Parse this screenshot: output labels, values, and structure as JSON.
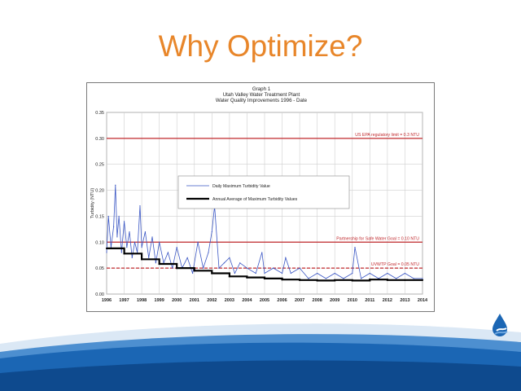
{
  "slide": {
    "title": "Why Optimize?"
  },
  "colors": {
    "title": "#e8862a",
    "limit_line": "#c0282c",
    "daily_series": "#3a56c4",
    "annual_series": "#000000",
    "swoosh": "#1b66b4"
  },
  "icons": {
    "logo": "water-drop-logo"
  },
  "chart_data": {
    "type": "line",
    "title_lines": [
      "Graph 1",
      "Utah Valley Water Treatment Plant",
      "Water Quality Improvements 1996 - Date"
    ],
    "xlabel": "",
    "ylabel": "Turbidity (NTU)",
    "xlim": [
      1996,
      2014
    ],
    "ylim": [
      0,
      0.35
    ],
    "x_ticks": [
      "1996",
      "1997",
      "1998",
      "1999",
      "2000",
      "2001",
      "2002",
      "2003",
      "2004",
      "2005",
      "2006",
      "2007",
      "2008",
      "2009",
      "2010",
      "2011",
      "2012",
      "2013",
      "2014"
    ],
    "y_ticks": [
      "0.00",
      "0.05",
      "0.10",
      "0.15",
      "0.20",
      "0.25",
      "0.30",
      "0.35"
    ],
    "grid": true,
    "legend_position": "upper-center",
    "reference_lines": [
      {
        "name": "US EPA regulatory limit = 0.3 NTU",
        "value": 0.3,
        "style": "solid"
      },
      {
        "name": "Partnership for Safe Water Goal = 0.10 NTU",
        "value": 0.1,
        "style": "solid"
      },
      {
        "name": "UVWTP Goal = 0.05 NTU",
        "value": 0.05,
        "style": "dashed"
      }
    ],
    "series": [
      {
        "name": "Daily Maximum Turbidity Value",
        "style": "thin",
        "x": [
          1996.0,
          1996.1,
          1996.25,
          1996.4,
          1996.5,
          1996.6,
          1996.7,
          1996.85,
          1997.0,
          1997.15,
          1997.3,
          1997.45,
          1997.6,
          1997.75,
          1997.9,
          1998.0,
          1998.2,
          1998.4,
          1998.6,
          1998.8,
          1999.0,
          1999.25,
          1999.5,
          1999.75,
          2000.0,
          2000.3,
          2000.6,
          2000.9,
          2001.2,
          2001.5,
          2001.8,
          2002.0,
          2002.15,
          2002.4,
          2002.7,
          2003.0,
          2003.3,
          2003.6,
          2004.0,
          2004.5,
          2004.85,
          2005.0,
          2005.5,
          2006.0,
          2006.2,
          2006.5,
          2007.0,
          2007.5,
          2008.0,
          2008.5,
          2009.0,
          2009.5,
          2010.0,
          2010.15,
          2010.5,
          2011.0,
          2011.5,
          2012.0,
          2012.5,
          2013.0,
          2013.5,
          2014.0
        ],
        "y": [
          0.08,
          0.15,
          0.09,
          0.13,
          0.21,
          0.11,
          0.15,
          0.08,
          0.14,
          0.09,
          0.12,
          0.07,
          0.1,
          0.08,
          0.17,
          0.09,
          0.12,
          0.07,
          0.11,
          0.06,
          0.1,
          0.06,
          0.08,
          0.05,
          0.09,
          0.05,
          0.07,
          0.04,
          0.1,
          0.05,
          0.08,
          0.12,
          0.17,
          0.05,
          0.06,
          0.07,
          0.04,
          0.06,
          0.05,
          0.04,
          0.08,
          0.04,
          0.05,
          0.04,
          0.07,
          0.04,
          0.05,
          0.03,
          0.04,
          0.03,
          0.04,
          0.03,
          0.04,
          0.09,
          0.03,
          0.04,
          0.03,
          0.04,
          0.03,
          0.04,
          0.03,
          0.03
        ]
      },
      {
        "name": "Annual Average of Maximum Turbidity Values",
        "style": "thick-step",
        "x": [
          1996,
          1997,
          1998,
          1999,
          2000,
          2001,
          2002,
          2003,
          2004,
          2005,
          2006,
          2007,
          2008,
          2009,
          2010,
          2011,
          2012,
          2013,
          2014
        ],
        "y": [
          0.088,
          0.078,
          0.067,
          0.058,
          0.05,
          0.045,
          0.04,
          0.034,
          0.032,
          0.03,
          0.028,
          0.027,
          0.026,
          0.027,
          0.026,
          0.028,
          0.027,
          0.027,
          0.027
        ]
      }
    ]
  }
}
